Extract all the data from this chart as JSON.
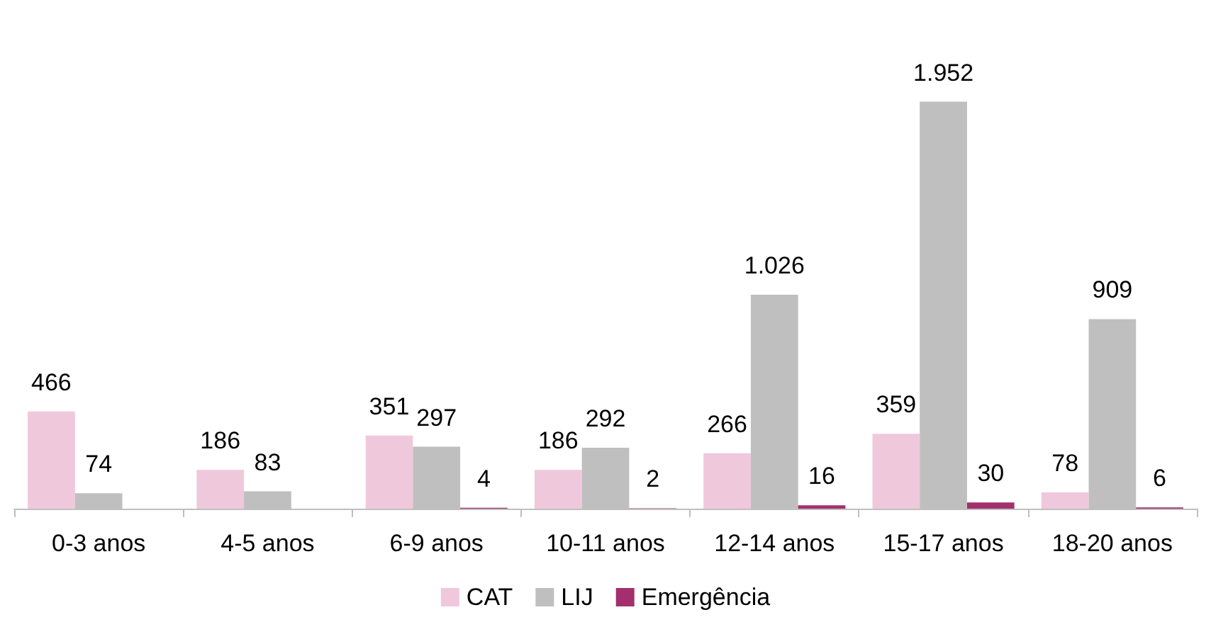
{
  "chart_data": {
    "type": "bar",
    "categories": [
      "0-3 anos",
      "4-5 anos",
      "6-9 anos",
      "10-11 anos",
      "12-14 anos",
      "15-17 anos",
      "18-20 anos"
    ],
    "series": [
      {
        "name": "CAT",
        "color": "#f0c8dc",
        "values": [
          466,
          186,
          351,
          186,
          266,
          359,
          78
        ],
        "value_labels": [
          "466",
          "186",
          "351",
          "186",
          "266",
          "359",
          "78"
        ]
      },
      {
        "name": "LIJ",
        "color": "#bfbfbf",
        "values": [
          74,
          83,
          297,
          292,
          1026,
          1952,
          909
        ],
        "value_labels": [
          "74",
          "83",
          "297",
          "292",
          "1.026",
          "1.952",
          "909"
        ]
      },
      {
        "name": "Emergência",
        "color": "#a3306c",
        "values": [
          null,
          null,
          4,
          2,
          16,
          30,
          6
        ],
        "value_labels": [
          null,
          null,
          "4",
          "2",
          "16",
          "30",
          "6"
        ]
      }
    ],
    "legend": "bottom"
  }
}
